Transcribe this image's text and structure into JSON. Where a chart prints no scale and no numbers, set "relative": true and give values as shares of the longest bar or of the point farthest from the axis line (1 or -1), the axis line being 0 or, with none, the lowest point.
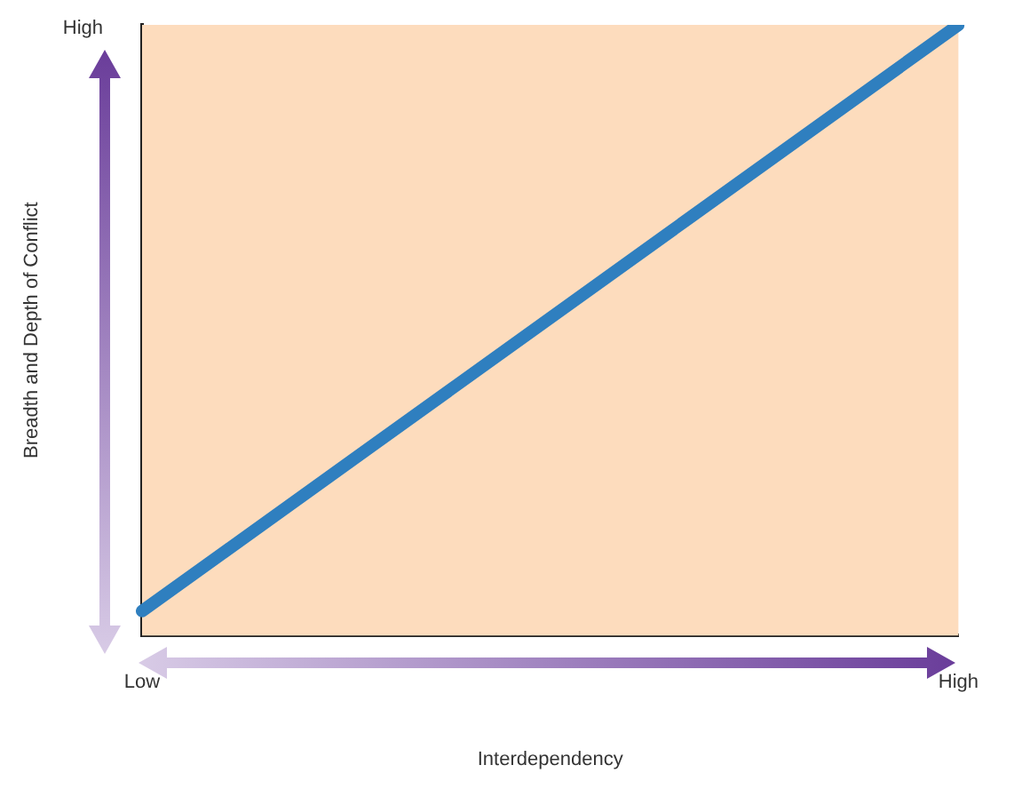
{
  "chart_data": {
    "type": "line",
    "xlabel": "Interdependency",
    "ylabel": "Breadth and Depth of Conflict",
    "relative": true,
    "categories": [
      "Low",
      "High"
    ],
    "series": [
      {
        "color": "#2f7fbf",
        "values": [
          0.04,
          1
        ]
      }
    ],
    "annotations": [
      "High"
    ],
    "bands": [
      {
        "axis": "y",
        "from": 0,
        "to": 1,
        "color": "#fddcbd"
      }
    ],
    "legend": false,
    "marker": "none",
    "line_style": "solid"
  }
}
